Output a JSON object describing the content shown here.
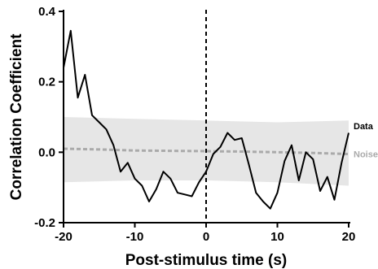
{
  "chart_data": {
    "type": "line",
    "xlabel": "Post-stimulus time (s)",
    "ylabel": "Correlation Coefficient",
    "xlim": [
      -20,
      20
    ],
    "ylim": [
      -0.2,
      0.4
    ],
    "x_ticks": [
      "-20",
      "-10",
      "0",
      "10",
      "20"
    ],
    "x_tick_values": [
      -20,
      -10,
      0,
      10,
      20
    ],
    "y_ticks": [
      "-0.2",
      "0.0",
      "0.2",
      "0.4"
    ],
    "y_tick_values": [
      -0.2,
      0.0,
      0.2,
      0.4
    ],
    "grid": false,
    "legend_placement": "right",
    "vertical_marker_x": 0,
    "noise_band": {
      "x": [
        -20,
        -10,
        0,
        10,
        20
      ],
      "upper": [
        0.1,
        0.095,
        0.09,
        0.085,
        0.09
      ],
      "lower": [
        -0.085,
        -0.08,
        -0.08,
        -0.085,
        -0.095
      ]
    },
    "series": [
      {
        "name": "Data",
        "color": "#000000",
        "style": "solid",
        "x": [
          -20,
          -19,
          -18,
          -17,
          -16,
          -15,
          -14,
          -13,
          -12,
          -11,
          -10,
          -9,
          -8,
          -7,
          -6,
          -5,
          -4,
          -3,
          -2,
          -1,
          0,
          1,
          2,
          3,
          4,
          5,
          6,
          7,
          8,
          9,
          10,
          11,
          12,
          13,
          14,
          15,
          16,
          17,
          18,
          19,
          20
        ],
        "values": [
          0.24,
          0.345,
          0.155,
          0.22,
          0.105,
          0.085,
          0.065,
          0.02,
          -0.055,
          -0.03,
          -0.075,
          -0.095,
          -0.14,
          -0.105,
          -0.055,
          -0.075,
          -0.115,
          -0.12,
          -0.125,
          -0.085,
          -0.055,
          -0.005,
          0.015,
          0.055,
          0.035,
          0.04,
          -0.035,
          -0.115,
          -0.14,
          -0.16,
          -0.115,
          -0.025,
          0.02,
          -0.08,
          0.0,
          -0.02,
          -0.11,
          -0.07,
          -0.135,
          -0.03,
          0.055
        ]
      },
      {
        "name": "Noise",
        "color": "#aaaaaa",
        "style": "dashed",
        "x": [
          -20,
          -15,
          -10,
          -5,
          0,
          5,
          10,
          15,
          20
        ],
        "values": [
          0.01,
          0.008,
          0.005,
          0.004,
          0.003,
          0.002,
          0.0,
          -0.002,
          -0.005
        ]
      }
    ]
  }
}
